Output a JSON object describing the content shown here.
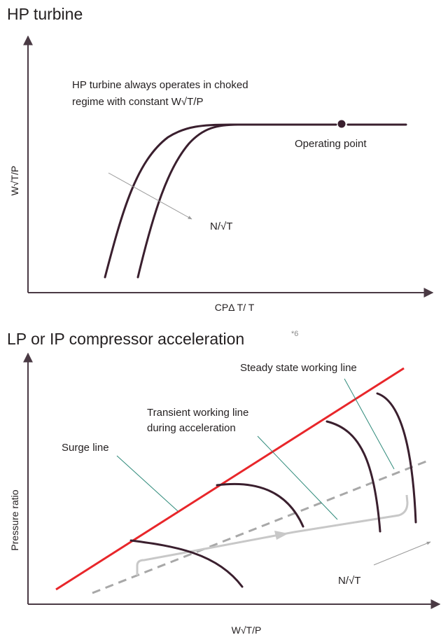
{
  "panel_top": {
    "title": "HP turbine",
    "note_line1": "HP turbine always operates in choked",
    "note_line2": "regime with constant W√T/P",
    "operating_point_label": "Operating point",
    "speed_label": "N/√T",
    "y_axis_label": "W√T/P",
    "x_axis_label": "CPΔ T/ T"
  },
  "panel_bottom": {
    "title": "LP or IP compressor acceleration",
    "title_superscript": "*6",
    "steady_state_label": "Steady state working line",
    "transient_label_line1": "Transient working line",
    "transient_label_line2": "during acceleration",
    "surge_label": "Surge line",
    "speed_label": "N/√T",
    "y_axis_label": "Pressure ratio",
    "x_axis_label": "W√T/P"
  },
  "colors": {
    "curve": "#3a1f2e",
    "surge_line": "#e8262a",
    "working_line": "#a8a8a8",
    "leader": "#2e8a7a",
    "axis": "#4a3a44"
  }
}
